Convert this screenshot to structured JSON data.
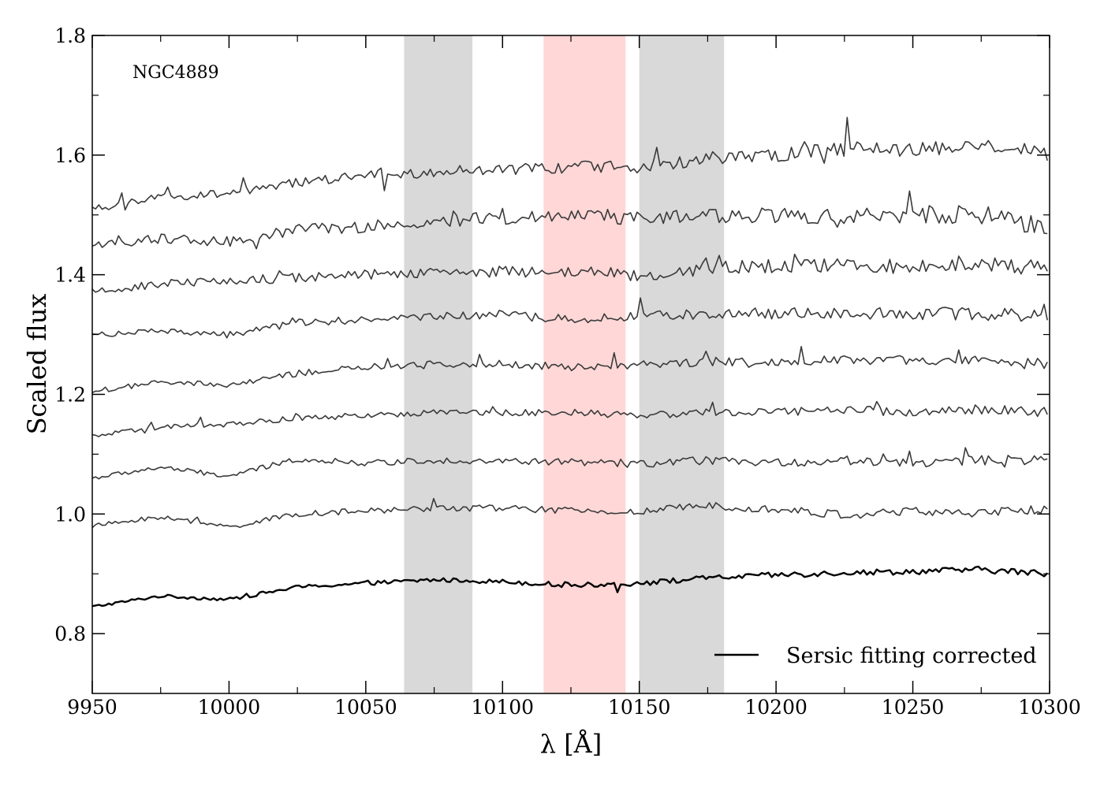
{
  "chart_data": {
    "type": "line",
    "annotation": "NGC4889",
    "xlabel": "λ [Å]",
    "ylabel": "Scaled flux",
    "xlim": [
      9950,
      10300
    ],
    "ylim": [
      0.7,
      1.8
    ],
    "xticks": [
      9950,
      10000,
      10050,
      10100,
      10150,
      10200,
      10250,
      10300
    ],
    "xtick_labels": [
      "9950",
      "10000",
      "10050",
      "10100",
      "10150",
      "10200",
      "10250",
      "10300"
    ],
    "yticks": [
      0.8,
      1.0,
      1.2,
      1.4,
      1.6,
      1.8
    ],
    "ytick_labels": [
      "0.8",
      "1.0",
      "1.2",
      "1.4",
      "1.6",
      "1.8"
    ],
    "shaded_regions": [
      {
        "name": "sideband-blue",
        "x0": 10064,
        "x1": 10089,
        "color": "#d9d9d9"
      },
      {
        "name": "feature-band",
        "x0": 10115,
        "x1": 10145,
        "color": "#ffd7d7"
      },
      {
        "name": "sideband-red",
        "x0": 10150,
        "x1": 10181,
        "color": "#d9d9d9"
      }
    ],
    "legend": {
      "location": "bottom-right",
      "entries": [
        {
          "label": "Sersic fitting corrected",
          "color": "#000000"
        }
      ]
    },
    "series": [
      {
        "name": "Sersic fitting corrected",
        "color": "#000000",
        "width": 2.4,
        "noise": 0.004,
        "spike": 0.03,
        "x": [
          9950,
          9975,
          10000,
          10025,
          10050,
          10075,
          10100,
          10125,
          10150,
          10175,
          10200,
          10225,
          10250,
          10275,
          10300
        ],
        "y": [
          0.845,
          0.863,
          0.857,
          0.878,
          0.884,
          0.89,
          0.887,
          0.881,
          0.884,
          0.893,
          0.898,
          0.902,
          0.904,
          0.907,
          0.9
        ]
      },
      {
        "name": "spectrum-1",
        "color": "#3a3a3a",
        "width": 1.6,
        "noise": 0.006,
        "spike": 0.025,
        "x": [
          9950,
          9975,
          10000,
          10025,
          10050,
          10075,
          10100,
          10125,
          10150,
          10175,
          10200,
          10225,
          10250,
          10275,
          10300
        ],
        "y": [
          0.98,
          0.995,
          0.978,
          1.0,
          1.005,
          1.01,
          1.01,
          1.005,
          1.003,
          1.015,
          1.008,
          0.998,
          1.005,
          1.0,
          1.01
        ]
      },
      {
        "name": "spectrum-2",
        "color": "#3a3a3a",
        "width": 1.6,
        "noise": 0.006,
        "spike": 0.03,
        "x": [
          9950,
          9975,
          10000,
          10025,
          10050,
          10075,
          10100,
          10125,
          10150,
          10175,
          10200,
          10225,
          10250,
          10275,
          10300
        ],
        "y": [
          1.06,
          1.078,
          1.063,
          1.092,
          1.085,
          1.09,
          1.088,
          1.087,
          1.083,
          1.09,
          1.085,
          1.09,
          1.085,
          1.09,
          1.09
        ]
      },
      {
        "name": "spectrum-3",
        "color": "#3a3a3a",
        "width": 1.6,
        "noise": 0.006,
        "spike": 0.03,
        "x": [
          9950,
          9975,
          10000,
          10025,
          10050,
          10075,
          10100,
          10125,
          10150,
          10175,
          10200,
          10225,
          10250,
          10275,
          10300
        ],
        "y": [
          1.13,
          1.145,
          1.15,
          1.16,
          1.165,
          1.17,
          1.17,
          1.17,
          1.165,
          1.17,
          1.17,
          1.175,
          1.17,
          1.175,
          1.17
        ]
      },
      {
        "name": "spectrum-4",
        "color": "#3a3a3a",
        "width": 1.6,
        "noise": 0.007,
        "spike": 0.035,
        "x": [
          9950,
          9975,
          10000,
          10025,
          10050,
          10075,
          10100,
          10125,
          10150,
          10175,
          10200,
          10225,
          10250,
          10275,
          10300
        ],
        "y": [
          1.205,
          1.22,
          1.215,
          1.235,
          1.245,
          1.25,
          1.252,
          1.245,
          1.25,
          1.255,
          1.255,
          1.26,
          1.255,
          1.255,
          1.25
        ]
      },
      {
        "name": "spectrum-5",
        "color": "#3a3a3a",
        "width": 1.6,
        "noise": 0.008,
        "spike": 0.04,
        "x": [
          9950,
          9975,
          10000,
          10025,
          10050,
          10075,
          10100,
          10125,
          10150,
          10175,
          10200,
          10225,
          10250,
          10275,
          10300
        ],
        "y": [
          1.3,
          1.305,
          1.3,
          1.32,
          1.325,
          1.33,
          1.333,
          1.325,
          1.33,
          1.335,
          1.335,
          1.335,
          1.335,
          1.335,
          1.33
        ]
      },
      {
        "name": "spectrum-6",
        "color": "#3a3a3a",
        "width": 1.6,
        "noise": 0.01,
        "spike": 0.045,
        "x": [
          9950,
          9975,
          10000,
          10025,
          10050,
          10075,
          10100,
          10125,
          10150,
          10175,
          10200,
          10225,
          10250,
          10275,
          10300
        ],
        "y": [
          1.37,
          1.385,
          1.39,
          1.395,
          1.4,
          1.405,
          1.405,
          1.405,
          1.4,
          1.41,
          1.415,
          1.415,
          1.415,
          1.42,
          1.41
        ]
      },
      {
        "name": "spectrum-7",
        "color": "#3a3a3a",
        "width": 1.6,
        "noise": 0.012,
        "spike": 0.06,
        "x": [
          9950,
          9975,
          10000,
          10025,
          10050,
          10075,
          10100,
          10125,
          10150,
          10175,
          10200,
          10225,
          10250,
          10275,
          10300
        ],
        "y": [
          1.45,
          1.46,
          1.455,
          1.475,
          1.48,
          1.49,
          1.495,
          1.5,
          1.495,
          1.5,
          1.5,
          1.5,
          1.5,
          1.5,
          1.48
        ]
      },
      {
        "name": "spectrum-8",
        "color": "#3a3a3a",
        "width": 1.6,
        "noise": 0.01,
        "spike": 0.06,
        "x": [
          9950,
          9975,
          10000,
          10025,
          10050,
          10075,
          10100,
          10125,
          10150,
          10175,
          10200,
          10225,
          10250,
          10275,
          10300
        ],
        "y": [
          1.51,
          1.53,
          1.535,
          1.555,
          1.565,
          1.57,
          1.575,
          1.58,
          1.58,
          1.595,
          1.6,
          1.61,
          1.61,
          1.62,
          1.6
        ]
      }
    ]
  }
}
